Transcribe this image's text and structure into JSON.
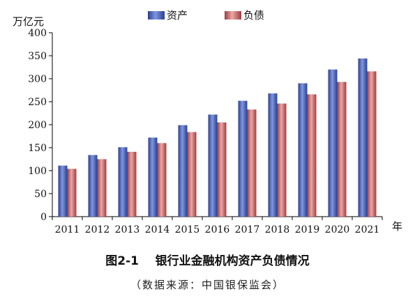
{
  "chart_data": {
    "type": "bar",
    "title": "图2-1    银行业金融机构资产负债情况",
    "source_note": "（数据来源：中国银保监会）",
    "ylabel": "万亿元",
    "xlabel": "年",
    "ylim": [
      0,
      400
    ],
    "yticks": [
      "0",
      "50",
      "100",
      "150",
      "200",
      "250",
      "300",
      "350",
      "400"
    ],
    "categories": [
      "2011",
      "2012",
      "2013",
      "2014",
      "2015",
      "2016",
      "2017",
      "2018",
      "2019",
      "2020",
      "2021"
    ],
    "series": [
      {
        "name": "资产",
        "color": "#5a74c4",
        "values": [
          111,
          134,
          151,
          172,
          199,
          222,
          252,
          268,
          290,
          320,
          344
        ]
      },
      {
        "name": "负债",
        "color": "#c8696a",
        "values": [
          104,
          125,
          141,
          160,
          184,
          205,
          233,
          246,
          266,
          293,
          316
        ]
      }
    ],
    "grid": false,
    "legend_position": "top"
  }
}
